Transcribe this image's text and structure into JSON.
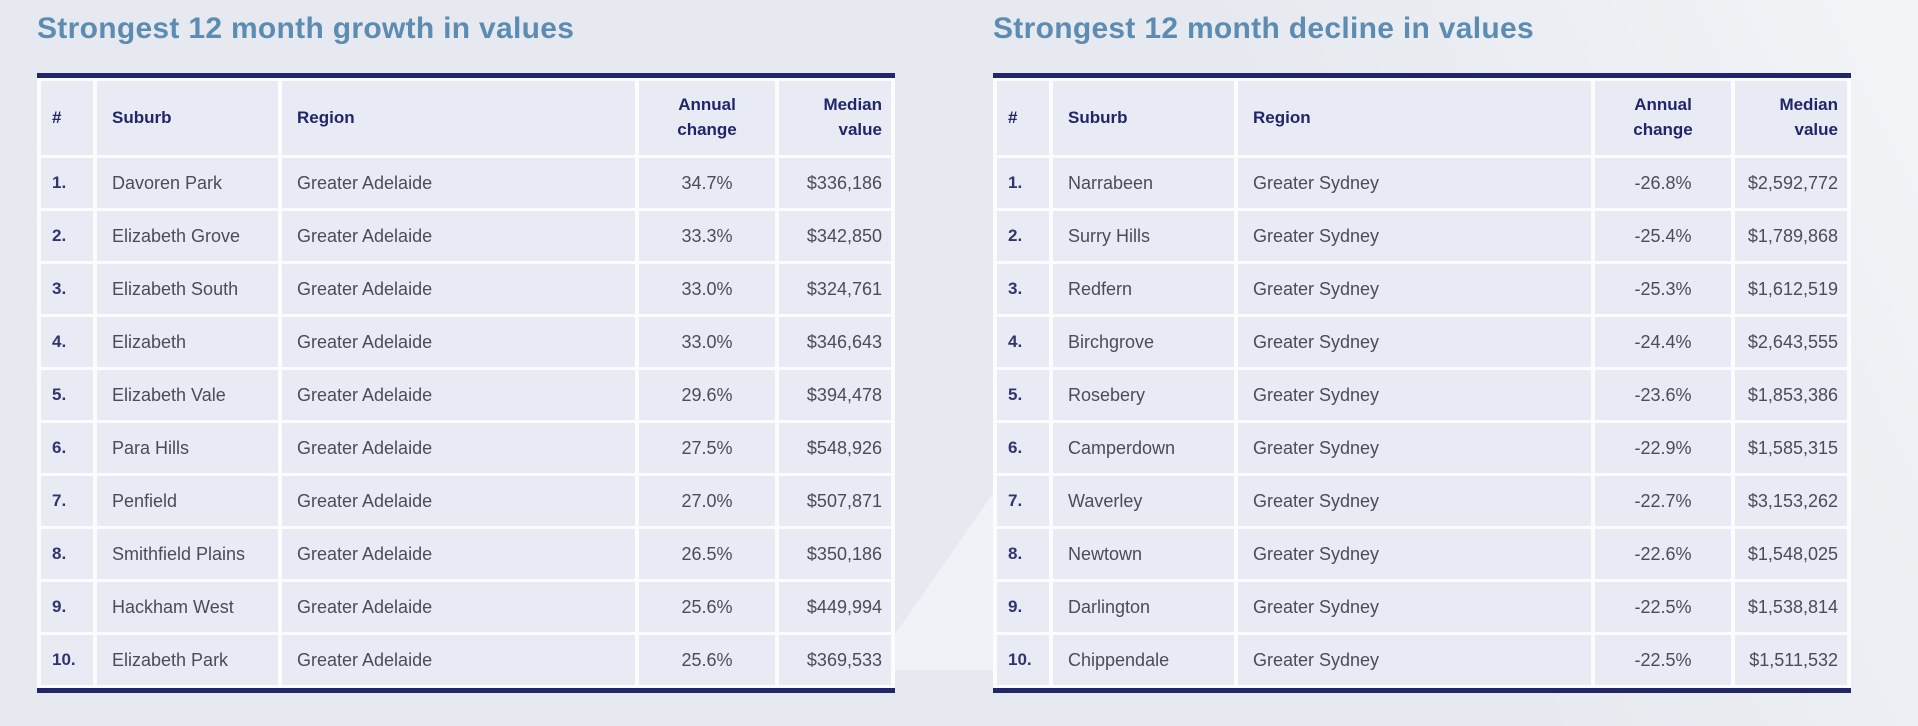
{
  "page": {
    "colors": {
      "page_bg": "#e6e9ef",
      "accent_navy": "#21266a",
      "title_color": "#5d8cb2",
      "cell_bg": "#e8ebf3",
      "divider": "#fbfcfe",
      "body_text": "#4b4c55",
      "rank_text": "#30346f"
    }
  },
  "tables": [
    {
      "title": "Strongest 12 month growth in values",
      "columns": [
        {
          "key": "rank",
          "label": "#"
        },
        {
          "key": "suburb",
          "label": "Suburb"
        },
        {
          "key": "region",
          "label": "Region"
        },
        {
          "key": "annual_change",
          "label": "Annual\nchange"
        },
        {
          "key": "median_value",
          "label": "Median\nvalue"
        }
      ],
      "rows": [
        {
          "rank": "1.",
          "suburb": "Davoren Park",
          "region": "Greater Adelaide",
          "annual_change": "34.7%",
          "median_value": "$336,186"
        },
        {
          "rank": "2.",
          "suburb": "Elizabeth Grove",
          "region": "Greater Adelaide",
          "annual_change": "33.3%",
          "median_value": "$342,850"
        },
        {
          "rank": "3.",
          "suburb": "Elizabeth South",
          "region": "Greater Adelaide",
          "annual_change": "33.0%",
          "median_value": "$324,761"
        },
        {
          "rank": "4.",
          "suburb": "Elizabeth",
          "region": "Greater Adelaide",
          "annual_change": "33.0%",
          "median_value": "$346,643"
        },
        {
          "rank": "5.",
          "suburb": "Elizabeth Vale",
          "region": "Greater Adelaide",
          "annual_change": "29.6%",
          "median_value": "$394,478"
        },
        {
          "rank": "6.",
          "suburb": "Para Hills",
          "region": "Greater Adelaide",
          "annual_change": "27.5%",
          "median_value": "$548,926"
        },
        {
          "rank": "7.",
          "suburb": "Penfield",
          "region": "Greater Adelaide",
          "annual_change": "27.0%",
          "median_value": "$507,871"
        },
        {
          "rank": "8.",
          "suburb": "Smithfield Plains",
          "region": "Greater Adelaide",
          "annual_change": "26.5%",
          "median_value": "$350,186"
        },
        {
          "rank": "9.",
          "suburb": "Hackham West",
          "region": "Greater Adelaide",
          "annual_change": "25.6%",
          "median_value": "$449,994"
        },
        {
          "rank": "10.",
          "suburb": "Elizabeth Park",
          "region": "Greater Adelaide",
          "annual_change": "25.6%",
          "median_value": "$369,533"
        }
      ]
    },
    {
      "title": "Strongest 12 month decline in values",
      "columns": [
        {
          "key": "rank",
          "label": "#"
        },
        {
          "key": "suburb",
          "label": "Suburb"
        },
        {
          "key": "region",
          "label": "Region"
        },
        {
          "key": "annual_change",
          "label": "Annual\nchange"
        },
        {
          "key": "median_value",
          "label": "Median\nvalue"
        }
      ],
      "rows": [
        {
          "rank": "1.",
          "suburb": "Narrabeen",
          "region": "Greater Sydney",
          "annual_change": "-26.8%",
          "median_value": "$2,592,772"
        },
        {
          "rank": "2.",
          "suburb": "Surry Hills",
          "region": "Greater Sydney",
          "annual_change": "-25.4%",
          "median_value": "$1,789,868"
        },
        {
          "rank": "3.",
          "suburb": "Redfern",
          "region": "Greater Sydney",
          "annual_change": "-25.3%",
          "median_value": "$1,612,519"
        },
        {
          "rank": "4.",
          "suburb": "Birchgrove",
          "region": "Greater Sydney",
          "annual_change": "-24.4%",
          "median_value": "$2,643,555"
        },
        {
          "rank": "5.",
          "suburb": "Rosebery",
          "region": "Greater Sydney",
          "annual_change": "-23.6%",
          "median_value": "$1,853,386"
        },
        {
          "rank": "6.",
          "suburb": "Camperdown",
          "region": "Greater Sydney",
          "annual_change": "-22.9%",
          "median_value": "$1,585,315"
        },
        {
          "rank": "7.",
          "suburb": "Waverley",
          "region": "Greater Sydney",
          "annual_change": "-22.7%",
          "median_value": "$3,153,262"
        },
        {
          "rank": "8.",
          "suburb": "Newtown",
          "region": "Greater Sydney",
          "annual_change": "-22.6%",
          "median_value": "$1,548,025"
        },
        {
          "rank": "9.",
          "suburb": "Darlington",
          "region": "Greater Sydney",
          "annual_change": "-22.5%",
          "median_value": "$1,538,814"
        },
        {
          "rank": "10.",
          "suburb": "Chippendale",
          "region": "Greater Sydney",
          "annual_change": "-22.5%",
          "median_value": "$1,511,532"
        }
      ]
    }
  ]
}
